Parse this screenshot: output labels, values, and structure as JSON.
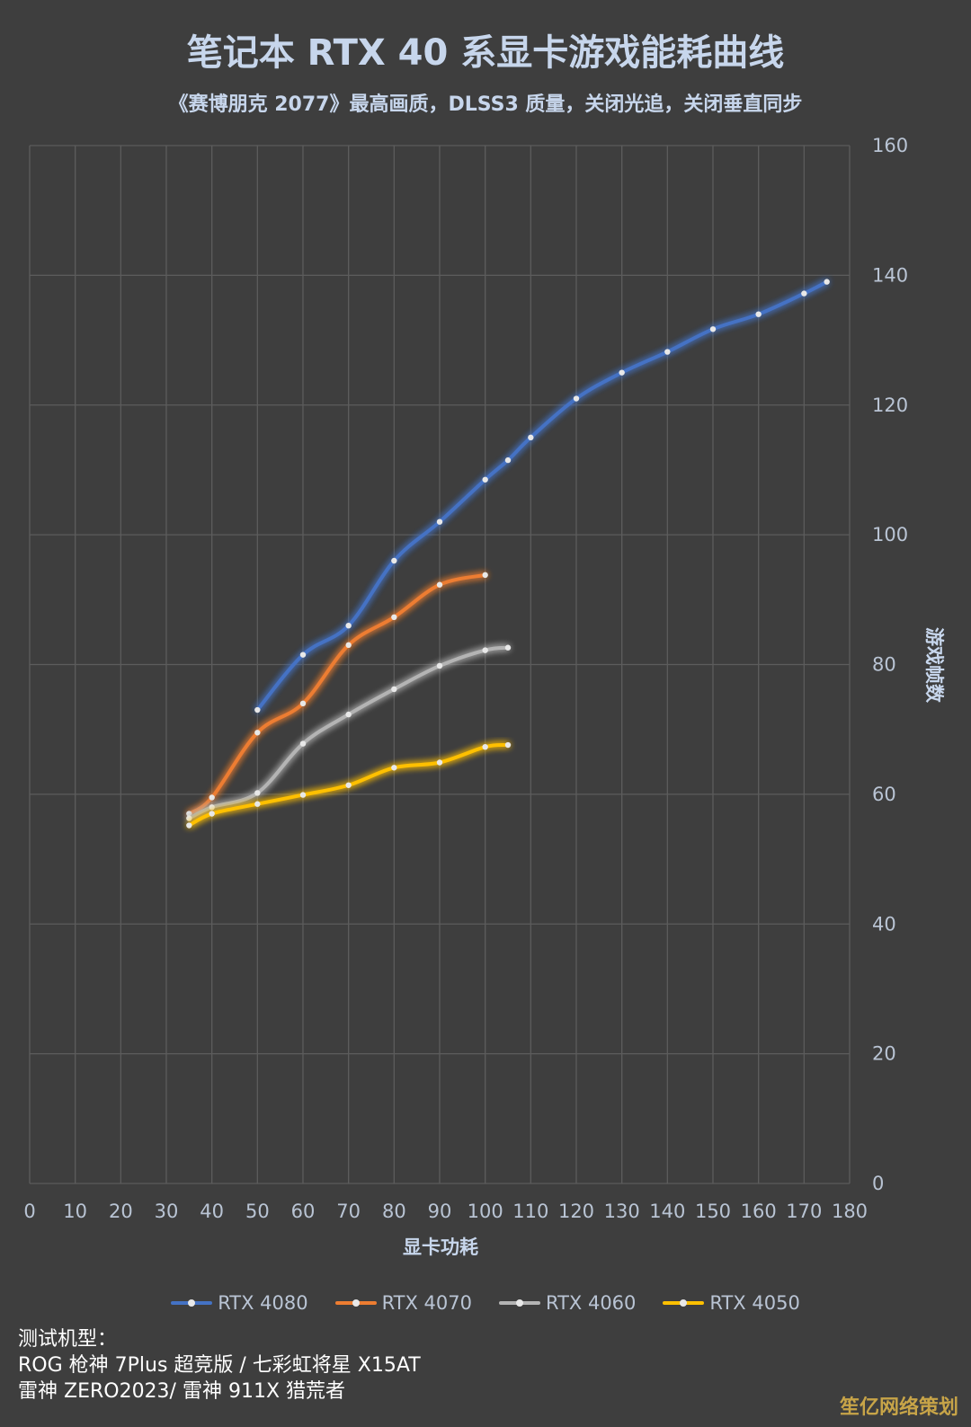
{
  "title": "笔记本 RTX 40 系显卡游戏能耗曲线",
  "subtitle": "《赛博朋克 2077》最高画质，DLSS3 质量，关闭光追，关闭垂直同步",
  "chart_data": {
    "type": "line",
    "xlabel": "显卡功耗",
    "ylabel": "游戏帧数",
    "xlim": [
      0,
      180
    ],
    "ylim": [
      0,
      160
    ],
    "x_ticks": [
      "0",
      "10",
      "20",
      "30",
      "40",
      "50",
      "60",
      "70",
      "80",
      "90",
      "100",
      "110",
      "120",
      "130",
      "140",
      "150",
      "160",
      "170",
      "180"
    ],
    "y_ticks": [
      "0",
      "20",
      "40",
      "60",
      "80",
      "100",
      "120",
      "140",
      "160"
    ],
    "grid": true,
    "legend_position": "bottom",
    "series": [
      {
        "name": "RTX 4080",
        "color": "#4472c4",
        "points": [
          [
            50,
            73
          ],
          [
            60,
            81.5
          ],
          [
            70,
            86
          ],
          [
            80,
            96
          ],
          [
            90,
            102
          ],
          [
            100,
            108.5
          ],
          [
            105,
            111.5
          ],
          [
            110,
            115
          ],
          [
            120,
            121
          ],
          [
            130,
            125
          ],
          [
            140,
            128.2
          ],
          [
            150,
            131.7
          ],
          [
            160,
            134
          ],
          [
            170,
            137.2
          ],
          [
            175,
            139
          ]
        ]
      },
      {
        "name": "RTX 4070",
        "color": "#ed7d31",
        "points": [
          [
            35,
            57
          ],
          [
            40,
            59.5
          ],
          [
            50,
            69.5
          ],
          [
            60,
            74
          ],
          [
            70,
            83
          ],
          [
            80,
            87.3
          ],
          [
            90,
            92.3
          ],
          [
            100,
            93.8
          ]
        ]
      },
      {
        "name": "RTX 4060",
        "color": "#b4b4b4",
        "points": [
          [
            35,
            56.3
          ],
          [
            40,
            58
          ],
          [
            50,
            60.2
          ],
          [
            60,
            67.8
          ],
          [
            70,
            72.3
          ],
          [
            80,
            76.2
          ],
          [
            90,
            79.8
          ],
          [
            100,
            82.2
          ],
          [
            105,
            82.6
          ]
        ]
      },
      {
        "name": "RTX 4050",
        "color": "#ffc000",
        "points": [
          [
            35,
            55.2
          ],
          [
            40,
            57
          ],
          [
            50,
            58.5
          ],
          [
            60,
            59.9
          ],
          [
            70,
            61.4
          ],
          [
            80,
            64.1
          ],
          [
            90,
            64.9
          ],
          [
            100,
            67.3
          ],
          [
            105,
            67.6
          ]
        ]
      }
    ]
  },
  "legend": {
    "items": [
      {
        "label": "RTX 4080",
        "color": "#4472c4"
      },
      {
        "label": "RTX 4070",
        "color": "#ed7d31"
      },
      {
        "label": "RTX 4060",
        "color": "#b4b4b4"
      },
      {
        "label": "RTX 4050",
        "color": "#ffc000"
      }
    ]
  },
  "notes": {
    "heading": "测试机型：",
    "line1": "ROG 枪神 7Plus 超竞版 / 七彩虹将星 X15AT",
    "line2": "雷神 ZERO2023/ 雷神 911X 猎荒者"
  },
  "watermark": "笙亿网络策划"
}
